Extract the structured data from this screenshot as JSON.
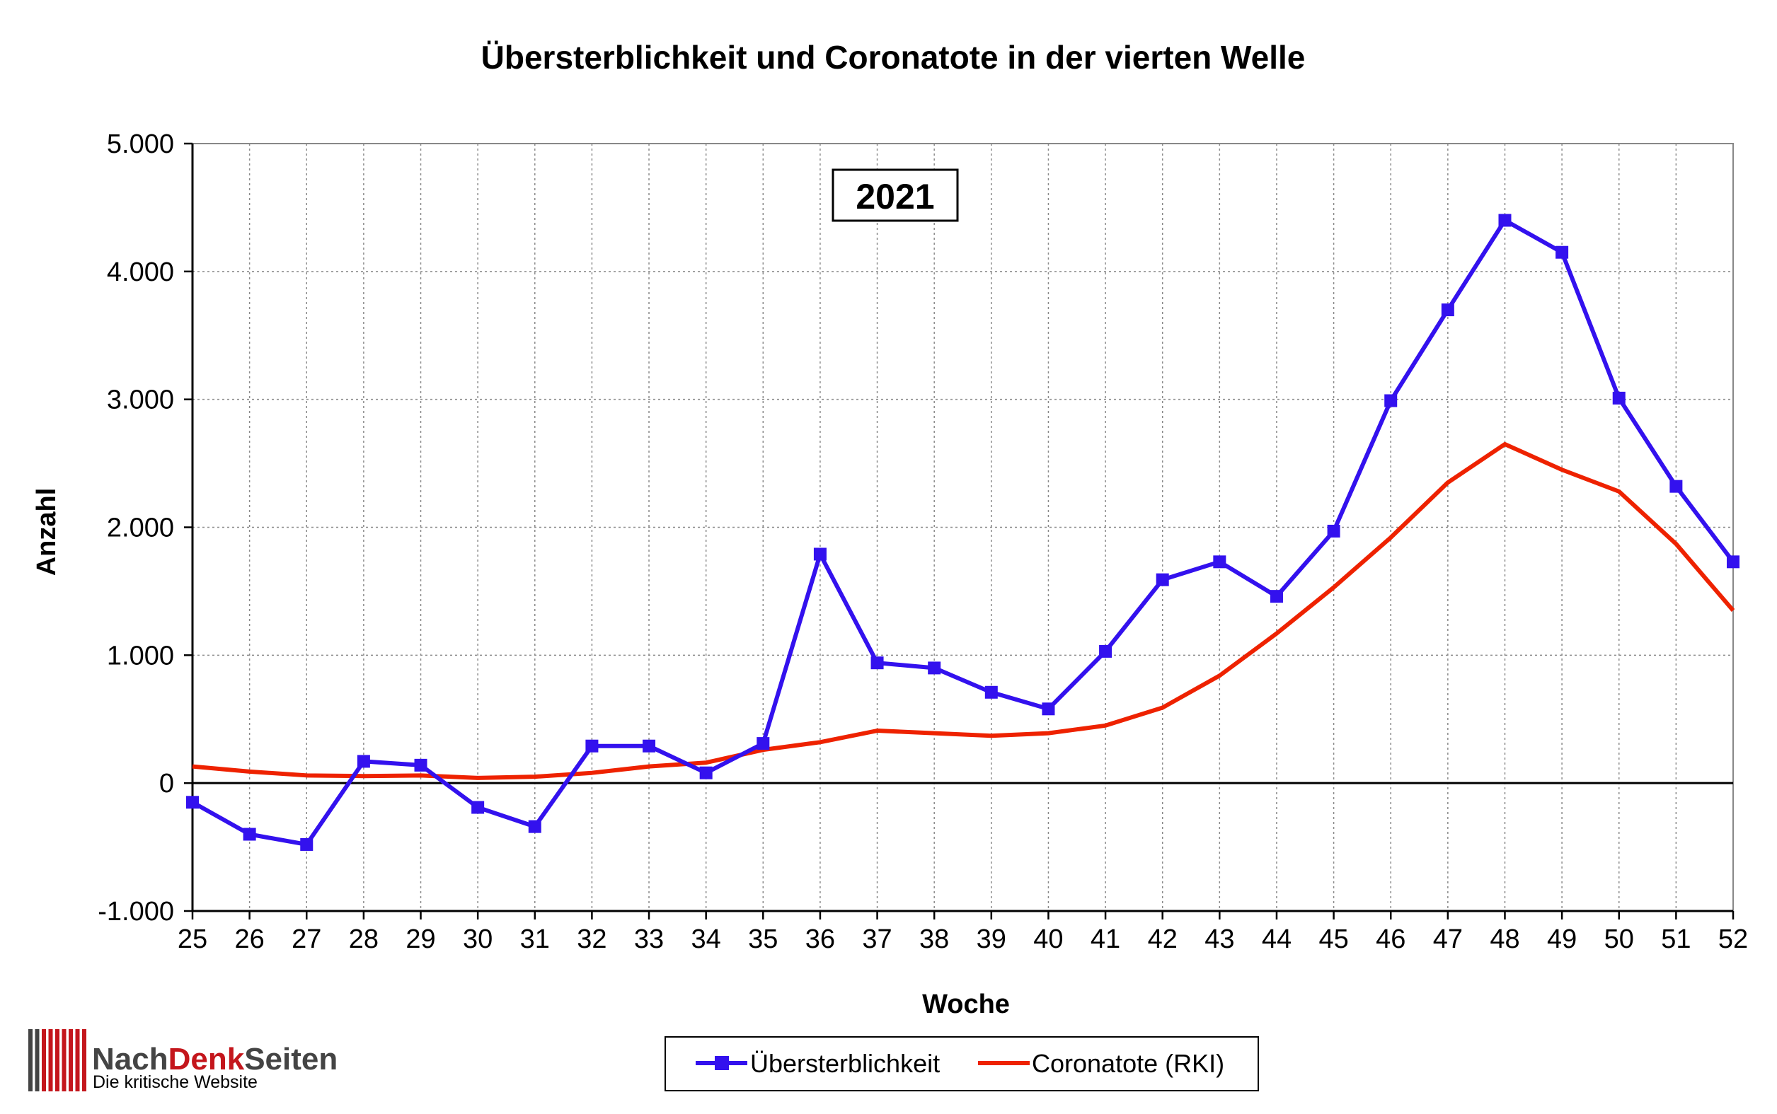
{
  "chart_data": {
    "type": "line",
    "title": "Übersterblichkeit und Coronatote in der vierten Welle",
    "annotation": "2021",
    "xlabel": "Woche",
    "ylabel": "Anzahl",
    "ylim": [
      -1000,
      5000
    ],
    "yticks": [
      -1000,
      0,
      1000,
      2000,
      3000,
      4000,
      5000
    ],
    "ytick_labels": [
      "-1.000",
      "0",
      "1.000",
      "2.000",
      "3.000",
      "4.000",
      "5.000"
    ],
    "grid": true,
    "legend_position": "bottom-center",
    "x": [
      25,
      26,
      27,
      28,
      29,
      30,
      31,
      32,
      33,
      34,
      35,
      36,
      37,
      38,
      39,
      40,
      41,
      42,
      43,
      44,
      45,
      46,
      47,
      48,
      49,
      50,
      51,
      52
    ],
    "series": [
      {
        "name": "Übersterblichkeit",
        "color": "#3311ee",
        "marker": "square",
        "values": [
          -150,
          -400,
          -480,
          170,
          140,
          -190,
          -340,
          290,
          290,
          80,
          310,
          1790,
          940,
          900,
          710,
          580,
          1030,
          1590,
          1730,
          1460,
          1970,
          2990,
          3700,
          4400,
          4150,
          3010,
          2320,
          1730
        ]
      },
      {
        "name": "Coronatote (RKI)",
        "color": "#ee2200",
        "marker": "none",
        "values": [
          130,
          90,
          60,
          55,
          60,
          40,
          50,
          80,
          130,
          160,
          260,
          320,
          410,
          390,
          370,
          390,
          450,
          590,
          840,
          1170,
          1530,
          1920,
          2350,
          2650,
          2450,
          2280,
          1870,
          1350
        ]
      }
    ]
  },
  "branding": {
    "name_part1": "Nach",
    "name_part2": "Denk",
    "name_part3": "Seiten",
    "tagline": "Die kritische Website",
    "color_dark": "#444444",
    "color_red": "#c4161c"
  }
}
